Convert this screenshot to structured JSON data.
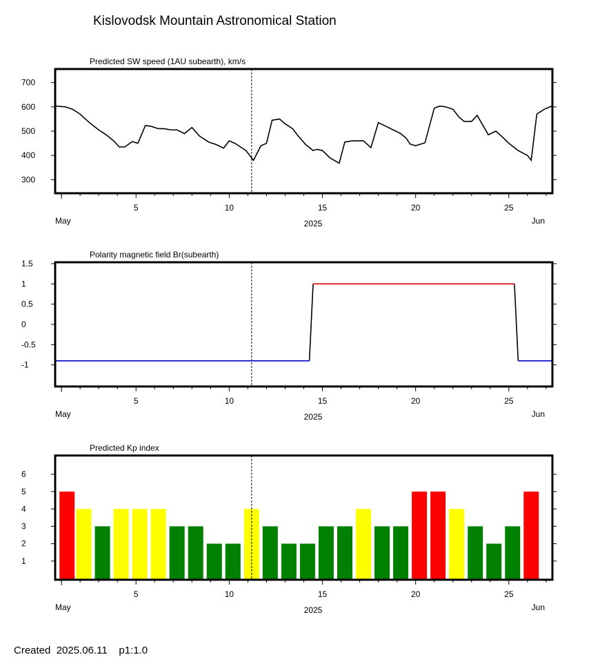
{
  "title": "Kislovodsk Mountain Astronomical Station",
  "footer": {
    "created_label": "Created",
    "created_date": "2025.06.11",
    "page_label": "p1:1.0"
  },
  "colors": {
    "positive_polarity": "#e00000",
    "negative_polarity": "#0000cc",
    "kp_low": "#008000",
    "kp_mid": "#ffff00",
    "kp_high": "#ff0000"
  },
  "x_axis": {
    "start_day": 0.7,
    "end_day": 27.3,
    "major_ticks": [
      5,
      10,
      15,
      20,
      25
    ],
    "start_label": "May",
    "year_label": "2025",
    "end_label": "Jun",
    "current_time_day": 11.2
  },
  "chart_data": [
    {
      "type": "line",
      "title": "Predicted SW speed (1AU subearth), km/s",
      "ylim": [
        250,
        750
      ],
      "yticks": [
        300,
        400,
        500,
        600,
        700
      ],
      "x": [
        0.7,
        1.2,
        1.6,
        2.0,
        2.5,
        3.0,
        3.4,
        3.8,
        4.1,
        4.4,
        4.8,
        5.1,
        5.5,
        5.8,
        6.2,
        6.5,
        6.9,
        7.2,
        7.6,
        8.0,
        8.4,
        8.7,
        8.9,
        9.3,
        9.7,
        10.0,
        10.3,
        10.6,
        10.9,
        11.3,
        11.7,
        12.0,
        12.3,
        12.7,
        13.0,
        13.4,
        13.7,
        14.1,
        14.5,
        14.7,
        15.0,
        15.4,
        15.9,
        16.2,
        16.6,
        16.9,
        17.2,
        17.6,
        18.0,
        18.4,
        18.8,
        19.2,
        19.5,
        19.7,
        20.0,
        20.5,
        21.0,
        21.3,
        21.6,
        22.0,
        22.3,
        22.6,
        23.0,
        23.3,
        23.6,
        23.9,
        24.3,
        24.6,
        25.0,
        25.5,
        26.0,
        26.2,
        26.5,
        26.9,
        27.3
      ],
      "y": [
        603,
        600,
        590,
        570,
        535,
        505,
        485,
        460,
        435,
        435,
        457,
        450,
        523,
        520,
        510,
        510,
        505,
        505,
        490,
        515,
        480,
        465,
        455,
        445,
        430,
        460,
        450,
        435,
        420,
        380,
        440,
        450,
        545,
        550,
        530,
        510,
        480,
        445,
        420,
        425,
        420,
        390,
        368,
        455,
        460,
        460,
        460,
        432,
        535,
        520,
        505,
        490,
        470,
        447,
        440,
        452,
        595,
        603,
        600,
        590,
        560,
        540,
        540,
        565,
        525,
        485,
        500,
        480,
        450,
        420,
        400,
        380,
        570,
        590,
        603
      ],
      "xlabel": "",
      "ylabel": ""
    },
    {
      "type": "line",
      "title": "Polarity magnetic field  Br(subearth)",
      "ylim": [
        -1.5,
        1.5
      ],
      "yticks": [
        -1,
        -0.5,
        0,
        0.5,
        1,
        1.5
      ],
      "ytick_labels": [
        "-1",
        "-0.5",
        "0",
        "0.5",
        "1",
        "1.5"
      ],
      "series": [
        {
          "color_key": "negative_polarity",
          "x": [
            0.7,
            14.3
          ],
          "y": [
            -0.9,
            -0.9
          ]
        },
        {
          "color_key": "transition",
          "x": [
            14.3,
            14.5,
            14.5
          ],
          "y": [
            -0.9,
            1.0,
            1.0
          ]
        },
        {
          "color_key": "positive_polarity",
          "x": [
            14.5,
            25.3
          ],
          "y": [
            1.0,
            1.0
          ]
        },
        {
          "color_key": "transition",
          "x": [
            25.3,
            25.5
          ],
          "y": [
            1.0,
            -0.9
          ]
        },
        {
          "color_key": "negative_polarity",
          "x": [
            25.5,
            27.3
          ],
          "y": [
            -0.9,
            -0.9
          ]
        }
      ],
      "xlabel": "",
      "ylabel": ""
    },
    {
      "type": "bar",
      "title": "Predicted Kp index",
      "ylim": [
        0,
        7
      ],
      "yticks": [
        1,
        2,
        3,
        4,
        5,
        6
      ],
      "x": [
        1.3,
        2.2,
        3.2,
        4.2,
        5.2,
        6.2,
        7.2,
        8.2,
        9.2,
        10.2,
        11.2,
        12.2,
        13.2,
        14.2,
        15.2,
        16.2,
        17.2,
        18.2,
        19.2,
        20.2,
        21.2,
        22.2,
        23.2,
        24.2,
        25.2,
        26.2
      ],
      "values": [
        5,
        4,
        3,
        4,
        4,
        4,
        3,
        3,
        2,
        2,
        4,
        3,
        2,
        2,
        3,
        3,
        4,
        3,
        3,
        5,
        5,
        4,
        3,
        2,
        3,
        5
      ],
      "xlabel": "",
      "ylabel": ""
    }
  ]
}
